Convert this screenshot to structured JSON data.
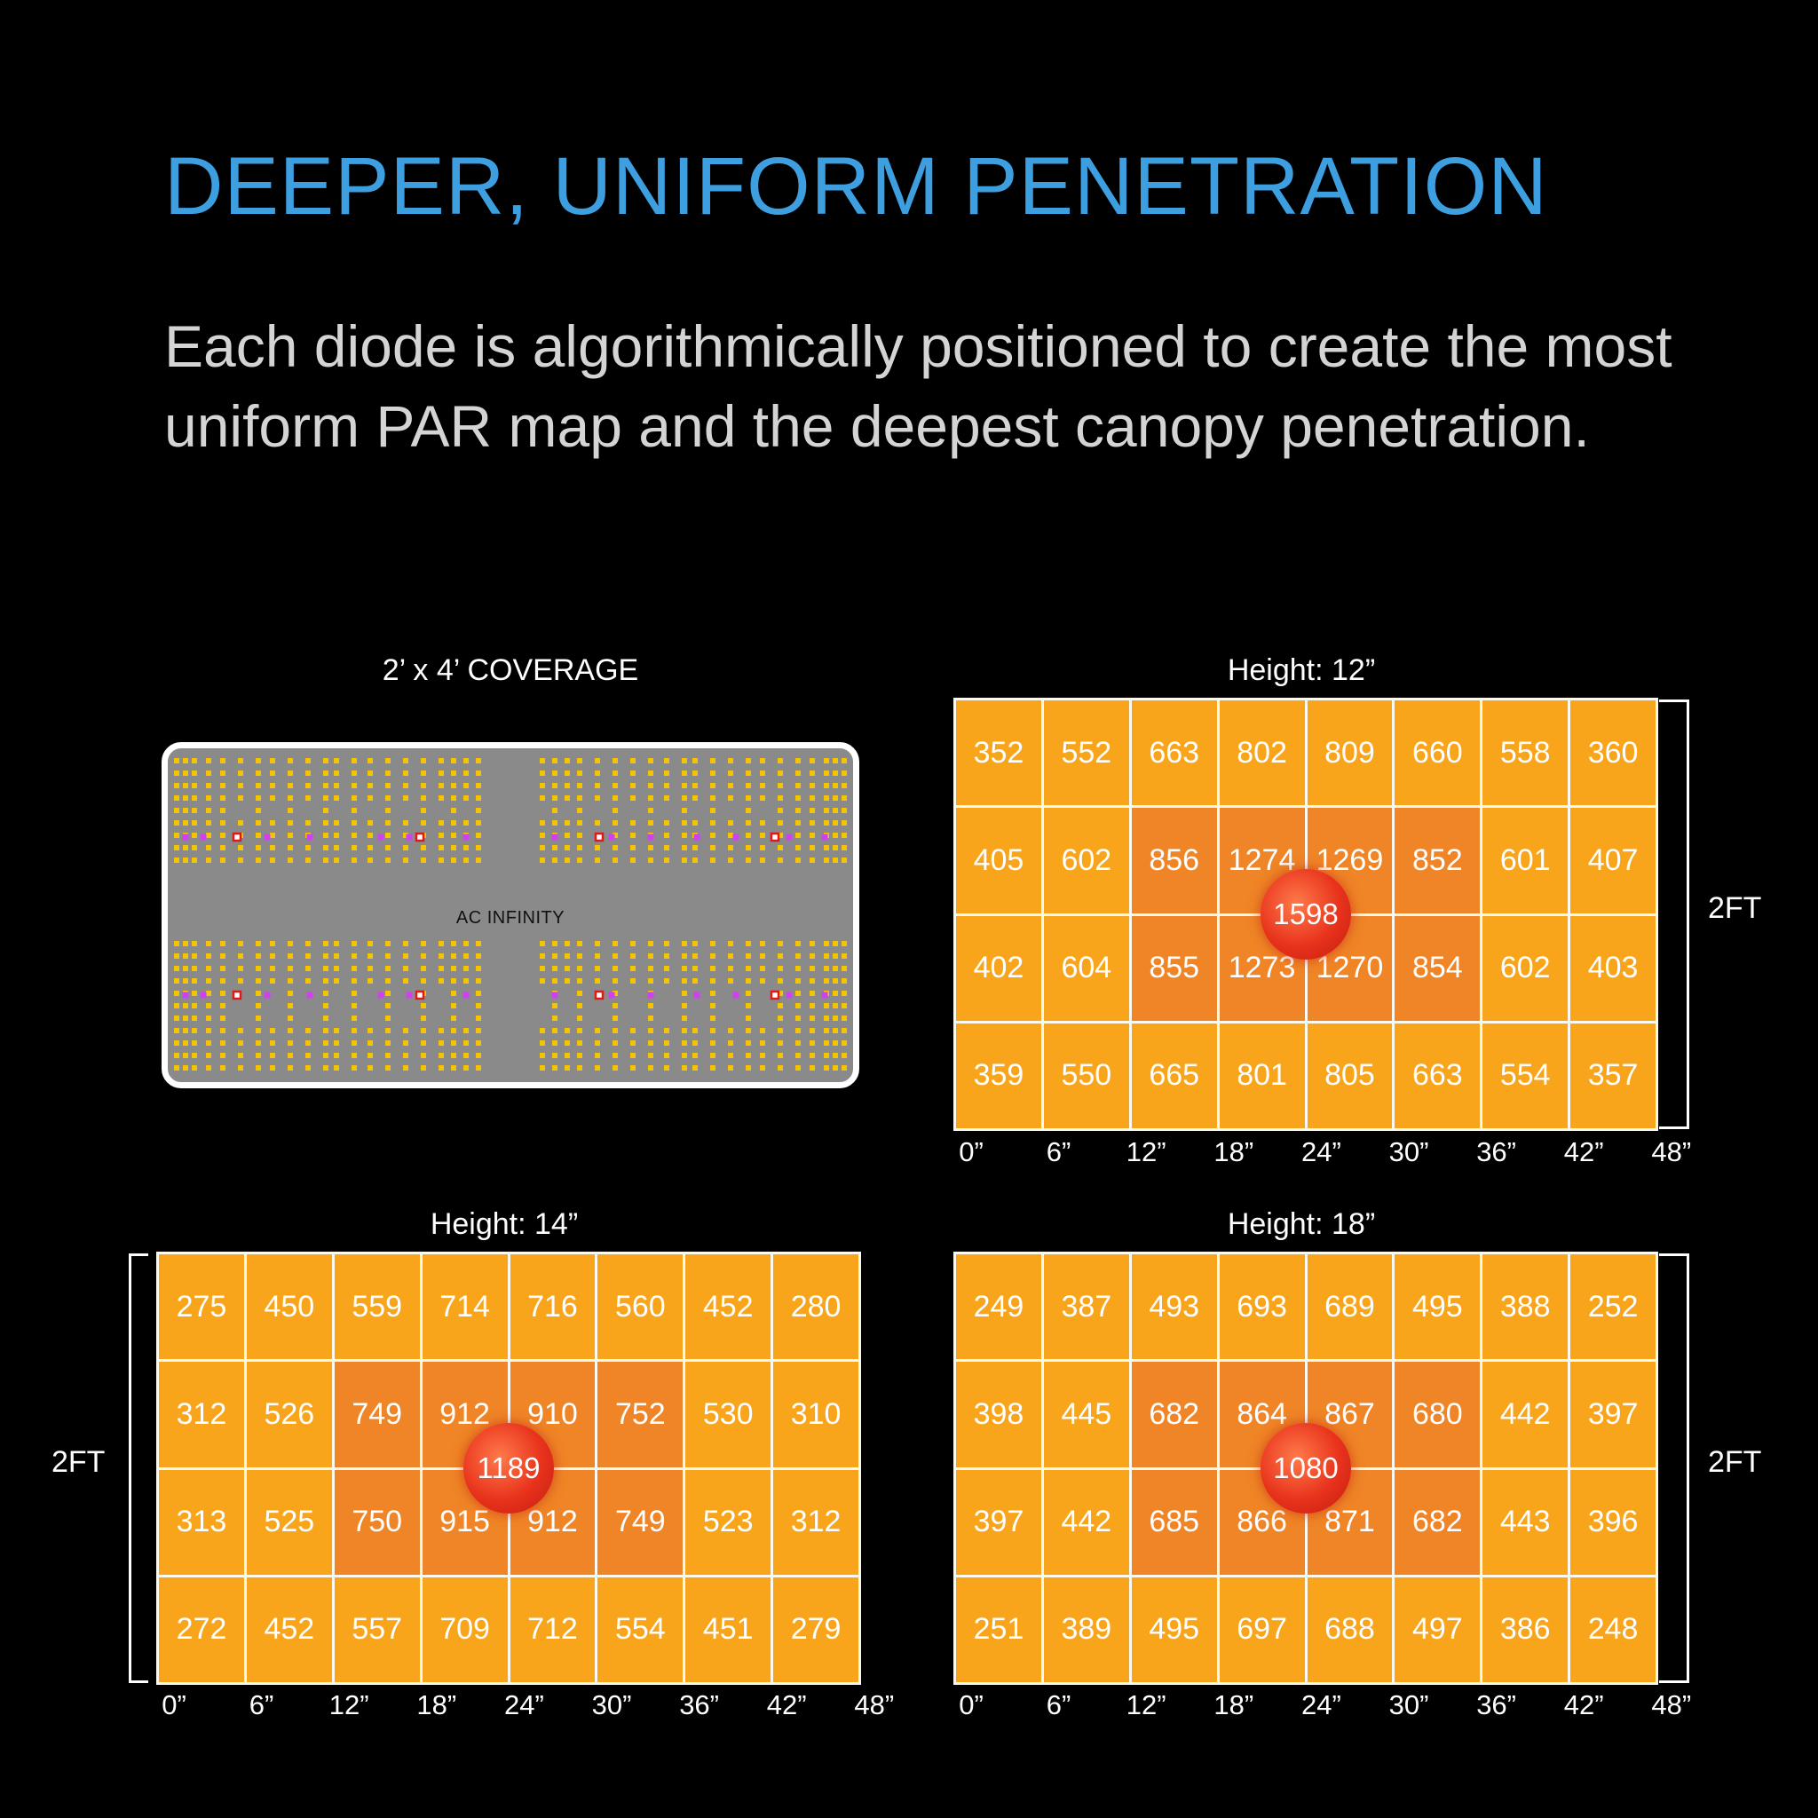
{
  "title": "DEEPER, UNIFORM PENETRATION",
  "description": "Each diode is algorithmically positioned to create the most uniform PAR map and the deepest canopy penetration.",
  "coverage": {
    "label": "2’ x 4’ COVERAGE",
    "brand": "AC INFINITY"
  },
  "colors": {
    "title": "#3d9fe0",
    "cell": "#f8a51b",
    "cell_center": "#ef8526",
    "peak": "#e8321c",
    "diode": "#f5c400",
    "diode_purple": "#d040f0",
    "diode_red": "#e01818"
  },
  "chart_data": [
    {
      "type": "heatmap",
      "title": "Height: 12”",
      "side_label": "2FT",
      "x_ticks": [
        "0”",
        "6”",
        "12”",
        "18”",
        "24”",
        "30”",
        "36”",
        "42”",
        "48”"
      ],
      "peak": 1598,
      "rows": [
        [
          352,
          552,
          663,
          802,
          809,
          660,
          558,
          360
        ],
        [
          405,
          602,
          856,
          1274,
          1269,
          852,
          601,
          407
        ],
        [
          402,
          604,
          855,
          1273,
          1270,
          854,
          602,
          403
        ],
        [
          359,
          550,
          665,
          801,
          805,
          663,
          554,
          357
        ]
      ]
    },
    {
      "type": "heatmap",
      "title": "Height: 14”",
      "side_label": "2FT",
      "x_ticks": [
        "0”",
        "6”",
        "12”",
        "18”",
        "24”",
        "30”",
        "36”",
        "42”",
        "48”"
      ],
      "peak": 1189,
      "rows": [
        [
          275,
          450,
          559,
          714,
          716,
          560,
          452,
          280
        ],
        [
          312,
          526,
          749,
          912,
          910,
          752,
          530,
          310
        ],
        [
          313,
          525,
          750,
          915,
          912,
          749,
          523,
          312
        ],
        [
          272,
          452,
          557,
          709,
          712,
          554,
          451,
          279
        ]
      ]
    },
    {
      "type": "heatmap",
      "title": "Height: 18”",
      "side_label": "2FT",
      "x_ticks": [
        "0”",
        "6”",
        "12”",
        "18”",
        "24”",
        "30”",
        "36”",
        "42”",
        "48”"
      ],
      "peak": 1080,
      "rows": [
        [
          249,
          387,
          493,
          693,
          689,
          495,
          388,
          252
        ],
        [
          398,
          445,
          682,
          864,
          867,
          680,
          442,
          397
        ],
        [
          397,
          442,
          685,
          866,
          871,
          682,
          443,
          396
        ],
        [
          251,
          389,
          495,
          697,
          688,
          497,
          386,
          248
        ]
      ]
    }
  ]
}
